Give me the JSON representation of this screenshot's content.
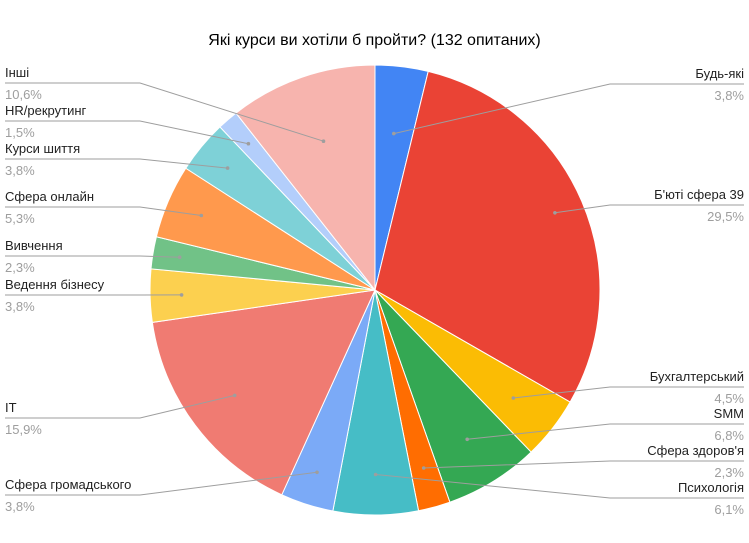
{
  "chart_data": {
    "type": "pie",
    "title": "Які курси ви хотіли б пройти? (132 опитаних)",
    "slices": [
      {
        "label": "Будь-які",
        "value_label": "3,8%",
        "value": 3.8,
        "color": "#4285f4"
      },
      {
        "label": "Б'юті сфера 39",
        "value_label": "29,5%",
        "value": 29.5,
        "color": "#ea4335"
      },
      {
        "label": "Бухгалтерський",
        "value_label": "4,5%",
        "value": 4.5,
        "color": "#fbbc04"
      },
      {
        "label": "SMM",
        "value_label": "6,8%",
        "value": 6.8,
        "color": "#34a853"
      },
      {
        "label": "Сфера здоров'я",
        "value_label": "2,3%",
        "value": 2.3,
        "color": "#ff6d01"
      },
      {
        "label": "Психологія",
        "value_label": "6,1%",
        "value": 6.1,
        "color": "#46bdc6"
      },
      {
        "label": "Сфера громадського",
        "value_label": "3,8%",
        "value": 3.8,
        "color": "#7baaf7"
      },
      {
        "label": "IT",
        "value_label": "15,9%",
        "value": 15.9,
        "color": "#f07b72"
      },
      {
        "label": "Ведення бізнесу",
        "value_label": "3,8%",
        "value": 3.8,
        "color": "#fcd04f"
      },
      {
        "label": "Вивчення",
        "value_label": "2,3%",
        "value": 2.3,
        "color": "#71c287"
      },
      {
        "label": "Сфера онлайн",
        "value_label": "5,3%",
        "value": 5.3,
        "color": "#ff994d"
      },
      {
        "label": "Курси шиття",
        "value_label": "3,8%",
        "value": 3.8,
        "color": "#7ed1d7"
      },
      {
        "label": "HR/рекрутинг",
        "value_label": "1,5%",
        "value": 1.5,
        "color": "#b3cefb"
      },
      {
        "label": "Інші",
        "value_label": "10,6%",
        "value": 10.6,
        "color": "#f7b4ae"
      }
    ]
  }
}
